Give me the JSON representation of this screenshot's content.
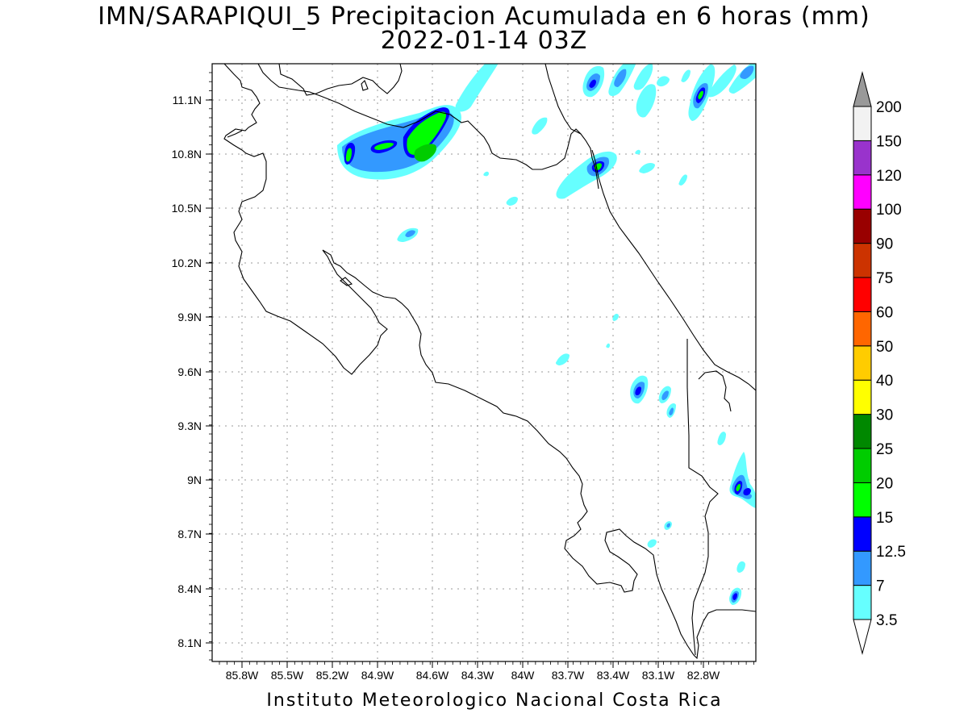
{
  "title": {
    "line1": "IMN/SARAPIQUI_5 Precipitacion Acumulada en 6 horas (mm)",
    "line2": "2022-01-14 03Z"
  },
  "footer": "Instituto Meteorologico Nacional Costa Rica",
  "map": {
    "lon_ticks": [
      "85.8W",
      "85.5W",
      "85.2W",
      "84.9W",
      "84.6W",
      "84.3W",
      "84W",
      "83.7W",
      "83.4W",
      "83.1W",
      "82.8W"
    ],
    "lat_ticks": [
      "11.1N",
      "10.8N",
      "10.5N",
      "10.2N",
      "9.9N",
      "9.6N",
      "9.3N",
      "9N",
      "8.7N",
      "8.4N",
      "8.1N"
    ],
    "lon_range": [
      -86.0,
      -82.5
    ],
    "lat_range": [
      8.0,
      11.3
    ],
    "grid": true
  },
  "colorbar": {
    "levels": [
      "3.5",
      "7",
      "12.5",
      "15",
      "20",
      "25",
      "30",
      "40",
      "50",
      "60",
      "75",
      "90",
      "100",
      "120",
      "150",
      "200"
    ],
    "colors": [
      "#66ffff",
      "#3399ff",
      "#0000ff",
      "#00ff00",
      "#00cc00",
      "#008800",
      "#ffff00",
      "#ffcc00",
      "#ff6600",
      "#ff0000",
      "#cc3300",
      "#990000",
      "#ff00ff",
      "#9933cc",
      "#f2f2f2",
      "#999999"
    ]
  }
}
